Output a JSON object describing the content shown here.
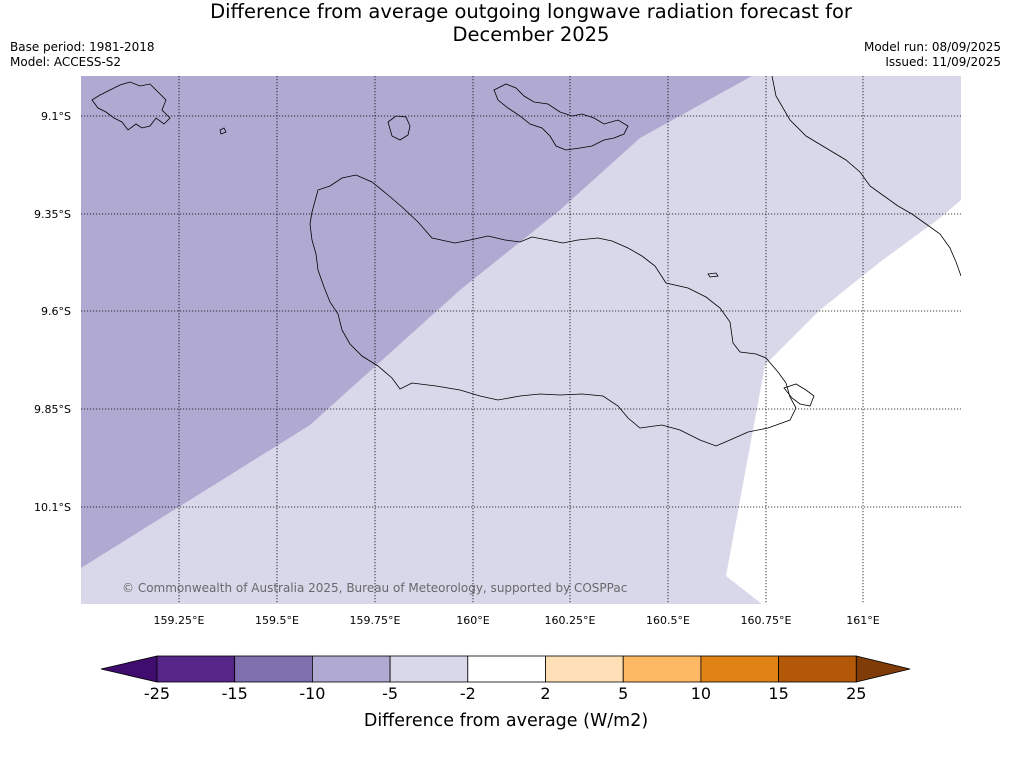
{
  "title": {
    "line1": "Difference from average outgoing longwave radiation forecast for",
    "line2": "December 2025"
  },
  "meta": {
    "base_period": "Base period: 1981-2018",
    "model": "Model: ACCESS-S2",
    "model_run": "Model run: 08/09/2025",
    "issued": "Issued: 11/09/2025"
  },
  "map": {
    "longitude_ticks": [
      "159.25°E",
      "159.5°E",
      "159.75°E",
      "160°E",
      "160.25°E",
      "160.5°E",
      "160.75°E",
      "161°E"
    ],
    "latitude_ticks": [
      "9.1°S",
      "9.35°S",
      "9.6°S",
      "9.85°S",
      "10.1°S"
    ],
    "gridlines": true,
    "copyright": "© Commonwealth of Australia 2025, Bureau of Meteorology, supported by COSPPac",
    "anomaly_zones": [
      {
        "range": "-10 to -5",
        "color": "#b0aad2"
      },
      {
        "range": "-5 to -2",
        "color": "#d8d8ea"
      },
      {
        "range": "-2 to 2",
        "color": "#ffffff"
      }
    ]
  },
  "colorbar": {
    "title": "Difference from average (W/m2)",
    "tick_labels": [
      "-25",
      "-15",
      "-10",
      "-5",
      "-2",
      "2",
      "5",
      "10",
      "15",
      "25"
    ],
    "colors": [
      "#3f0d6e",
      "#552587",
      "#7f70ad",
      "#b0aad2",
      "#d8d8ea",
      "#ffffff",
      "#ffe0b6",
      "#fdb863",
      "#e08214",
      "#b35806",
      "#7f3b08"
    ]
  }
}
